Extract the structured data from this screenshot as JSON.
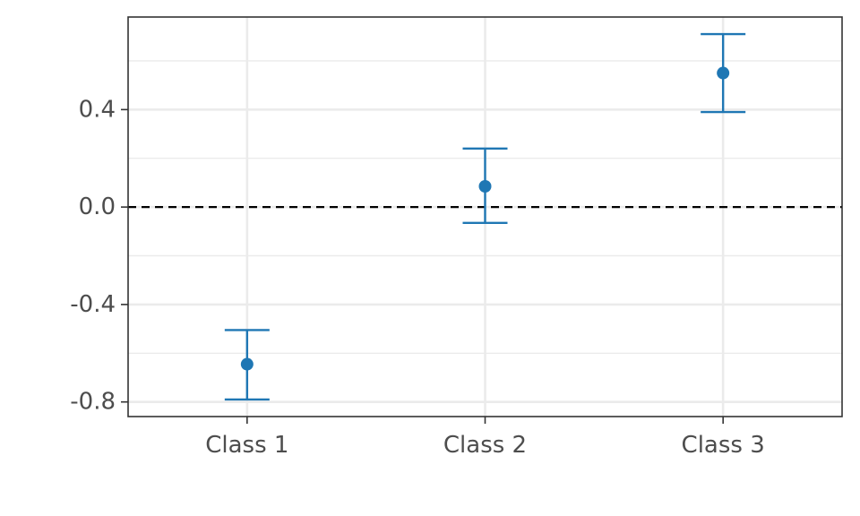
{
  "chart_data": {
    "type": "scatter",
    "subtype": "point-with-error-bars",
    "title": "",
    "xlabel": "",
    "ylabel": "",
    "categories": [
      "Class 1",
      "Class 2",
      "Class 3"
    ],
    "points": [
      {
        "category": "Class 1",
        "estimate": -0.645,
        "lower": -0.79,
        "upper": -0.505
      },
      {
        "category": "Class 2",
        "estimate": 0.085,
        "lower": -0.065,
        "upper": 0.24
      },
      {
        "category": "Class 3",
        "estimate": 0.55,
        "lower": 0.39,
        "upper": 0.71
      }
    ],
    "ylim": [
      -0.86,
      0.78
    ],
    "y_ticks": [
      -0.8,
      -0.4,
      0.0,
      0.4
    ],
    "y_tick_labels": [
      "-0.8",
      "-0.4",
      "0.0",
      "0.4"
    ],
    "reference_line": {
      "y": 0,
      "style": "dashed",
      "color": "#000000"
    },
    "grid": true,
    "legend": "none",
    "colors": {
      "series": "#1f77b4",
      "grid": "#ebebeb",
      "axis": "#333333",
      "tick_text": "#4d4d4d"
    }
  }
}
